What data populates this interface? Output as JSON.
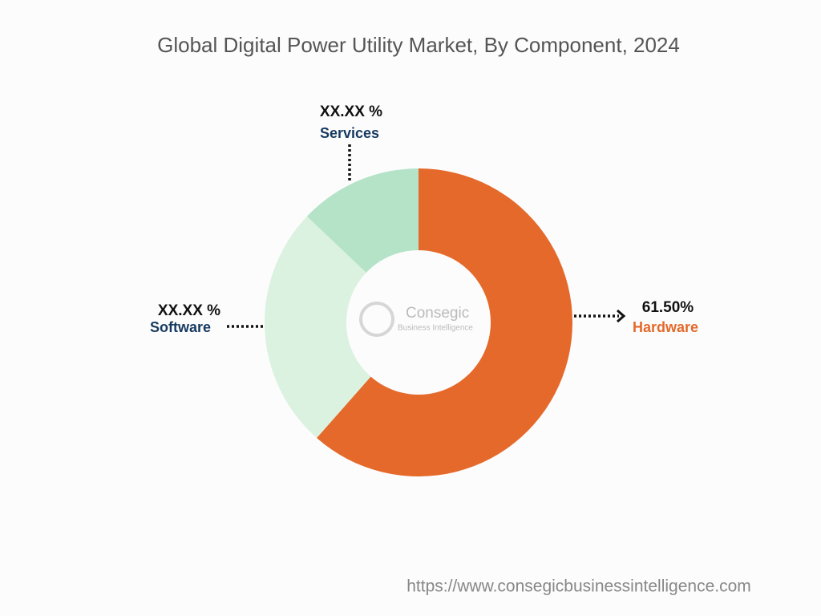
{
  "chart_data": {
    "type": "donut",
    "title": "Global Digital Power Utility Market, By Component, 2024",
    "categories": [
      "Hardware",
      "Software",
      "Services"
    ],
    "values": [
      61.5,
      25.6,
      12.9
    ],
    "value_labels": [
      "61.50%",
      "XX.XX %",
      "XX.XX %"
    ],
    "colors": [
      "#e4692a",
      "#dcf2e0",
      "#b5e3c8"
    ]
  },
  "watermark": {
    "name": "Consegic",
    "tagline": "Business Intelligence"
  },
  "footer": {
    "url": "https://www.consegicbusinessintelligence.com"
  }
}
